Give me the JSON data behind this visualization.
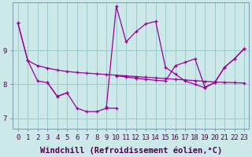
{
  "x": [
    0,
    1,
    2,
    3,
    4,
    5,
    6,
    7,
    8,
    9,
    10,
    11,
    12,
    13,
    14,
    15,
    16,
    17,
    18,
    19,
    20,
    21,
    22,
    23
  ],
  "line1": [
    9.8,
    8.7,
    8.55,
    8.48,
    8.42,
    8.38,
    8.35,
    8.33,
    8.31,
    8.29,
    8.27,
    8.25,
    8.23,
    8.21,
    8.19,
    8.17,
    8.15,
    8.13,
    8.11,
    8.09,
    8.07,
    8.06,
    8.05,
    8.04
  ],
  "line2": [
    9.8,
    8.7,
    8.1,
    8.05,
    7.65,
    7.75,
    7.3,
    7.2,
    7.2,
    7.3,
    7.3,
    null,
    null,
    null,
    null,
    null,
    null,
    null,
    null,
    null,
    null,
    null,
    null,
    null
  ],
  "line3": [
    null,
    null,
    null,
    8.05,
    7.65,
    7.75,
    null,
    null,
    null,
    7.35,
    10.3,
    9.25,
    9.55,
    9.78,
    9.85,
    8.5,
    8.3,
    8.1,
    8.0,
    7.9,
    8.05,
    8.5,
    8.75,
    9.05
  ],
  "line4": [
    null,
    null,
    null,
    null,
    null,
    null,
    null,
    null,
    null,
    null,
    8.25,
    8.22,
    8.18,
    8.15,
    8.12,
    8.1,
    8.55,
    8.65,
    8.75,
    7.92,
    8.05,
    8.5,
    8.75,
    9.05
  ],
  "bg_color": "#cce8e8",
  "line_color": "#990099",
  "grid_color": "#99cccc",
  "xlabel": "Windchill (Refroidissement éolien,°C)",
  "ylabel_ticks": [
    7,
    8,
    9
  ],
  "xlim": [
    -0.5,
    23.5
  ],
  "ylim": [
    6.7,
    10.4
  ],
  "xlabel_fontsize": 7.5,
  "tick_fontsize": 6.5
}
